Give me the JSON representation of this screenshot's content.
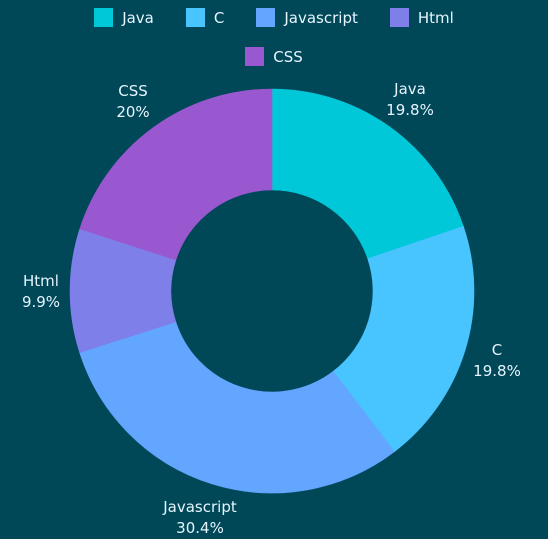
{
  "background": "#004757",
  "chart_data": {
    "type": "pie",
    "variant": "donut",
    "title": "",
    "legend_placement": "top",
    "categories": [
      "Java",
      "C",
      "Javascript",
      "Html",
      "CSS"
    ],
    "values": [
      19.8,
      19.8,
      30.4,
      9.9,
      20
    ],
    "value_labels": [
      "19.8%",
      "19.8%",
      "30.4%",
      "9.9%",
      "20%"
    ],
    "colors": [
      "#00c8d8",
      "#48c4ff",
      "#63a6ff",
      "#7f7fe9",
      "#9a58d0"
    ],
    "start_angle_deg": 0,
    "direction": "clockwise"
  }
}
